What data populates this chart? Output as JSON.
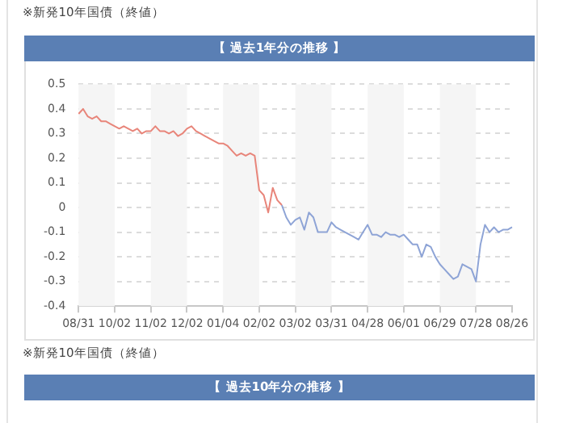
{
  "chart_data": {
    "type": "line",
    "title": "【 過去1年分の推移 】",
    "subtitle": "※新発10年国債（終値）",
    "annotations": [
      "※新発10年国債（終値）",
      "【 過去10年分の推移 】"
    ],
    "categories": [
      "08/31",
      null,
      null,
      null,
      null,
      null,
      null,
      null,
      "10/02",
      null,
      null,
      null,
      null,
      null,
      null,
      null,
      "11/02",
      null,
      null,
      null,
      null,
      null,
      null,
      null,
      "12/02",
      null,
      null,
      null,
      null,
      null,
      null,
      null,
      "01/04",
      null,
      null,
      null,
      null,
      null,
      null,
      null,
      "02/02",
      null,
      null,
      null,
      null,
      null,
      null,
      null,
      "03/02",
      null,
      null,
      null,
      null,
      null,
      null,
      null,
      "03/31",
      null,
      null,
      null,
      null,
      null,
      null,
      null,
      "04/28",
      null,
      null,
      null,
      null,
      null,
      null,
      null,
      "06/01",
      null,
      null,
      null,
      null,
      null,
      null,
      null,
      "06/29",
      null,
      null,
      null,
      null,
      null,
      null,
      null,
      "07/28",
      null,
      null,
      null,
      null,
      null,
      null,
      null,
      "08/26"
    ],
    "series": [
      {
        "color": "#e8857a",
        "values": [
          0.38,
          0.4,
          0.37,
          0.36,
          0.37,
          0.35,
          0.35,
          0.34,
          0.33,
          0.32,
          0.33,
          0.32,
          0.31,
          0.32,
          0.3,
          0.31,
          0.31,
          0.33,
          0.31,
          0.31,
          0.3,
          0.31,
          0.29,
          0.3,
          0.32,
          0.33,
          0.31,
          0.3,
          0.29,
          0.28,
          0.27,
          0.26,
          0.26,
          0.25,
          0.23,
          0.21,
          0.22,
          0.21,
          0.22,
          0.21,
          0.07,
          0.05,
          -0.02,
          0.08,
          0.03,
          0.01,
          null,
          null,
          null,
          null,
          null,
          null,
          null,
          null,
          null,
          null,
          null,
          null,
          null,
          null,
          null,
          null,
          null,
          null,
          null,
          null,
          null,
          null,
          null,
          null,
          null,
          null,
          null,
          null,
          null,
          null,
          null,
          null,
          null,
          null,
          null,
          null,
          null,
          null,
          null,
          null,
          null,
          null,
          null,
          null,
          null,
          null,
          null,
          null,
          null,
          null,
          null
        ]
      },
      {
        "color": "#8ea4d6",
        "values": [
          null,
          null,
          null,
          null,
          null,
          null,
          null,
          null,
          null,
          null,
          null,
          null,
          null,
          null,
          null,
          null,
          null,
          null,
          null,
          null,
          null,
          null,
          null,
          null,
          null,
          null,
          null,
          null,
          null,
          null,
          null,
          null,
          null,
          null,
          null,
          null,
          null,
          null,
          null,
          null,
          null,
          null,
          null,
          null,
          null,
          0.01,
          -0.04,
          -0.07,
          -0.05,
          -0.04,
          -0.09,
          -0.02,
          -0.04,
          -0.1,
          -0.1,
          -0.1,
          -0.06,
          -0.08,
          -0.09,
          -0.1,
          -0.11,
          -0.12,
          -0.13,
          -0.1,
          -0.07,
          -0.11,
          -0.11,
          -0.12,
          -0.1,
          -0.11,
          -0.11,
          -0.12,
          -0.11,
          -0.13,
          -0.15,
          -0.15,
          -0.2,
          -0.15,
          -0.16,
          -0.2,
          -0.23,
          -0.25,
          -0.27,
          -0.29,
          -0.28,
          -0.23,
          -0.24,
          -0.25,
          -0.3,
          -0.15,
          -0.07,
          -0.1,
          -0.08,
          -0.1,
          -0.09,
          -0.09,
          -0.08
        ]
      }
    ],
    "ylim": [
      -0.4,
      0.5
    ],
    "yticks": [
      -0.4,
      -0.3,
      -0.2,
      -0.1,
      0,
      0.1,
      0.2,
      0.3,
      0.4,
      0.5
    ],
    "grid": "y",
    "legend": false,
    "line_style": "solid",
    "bands": [
      {
        "axis": "x",
        "from": "08/31",
        "to": "10/02",
        "color": "#f5f5f5"
      },
      {
        "axis": "x",
        "from": "11/02",
        "to": "12/02",
        "color": "#f5f5f5"
      },
      {
        "axis": "x",
        "from": "01/04",
        "to": "02/02",
        "color": "#f5f5f5"
      },
      {
        "axis": "x",
        "from": "03/02",
        "to": "03/31",
        "color": "#f5f5f5"
      },
      {
        "axis": "x",
        "from": "04/28",
        "to": "06/01",
        "color": "#f5f5f5"
      },
      {
        "axis": "x",
        "from": "06/29",
        "to": "07/28",
        "color": "#f5f5f5"
      }
    ]
  }
}
